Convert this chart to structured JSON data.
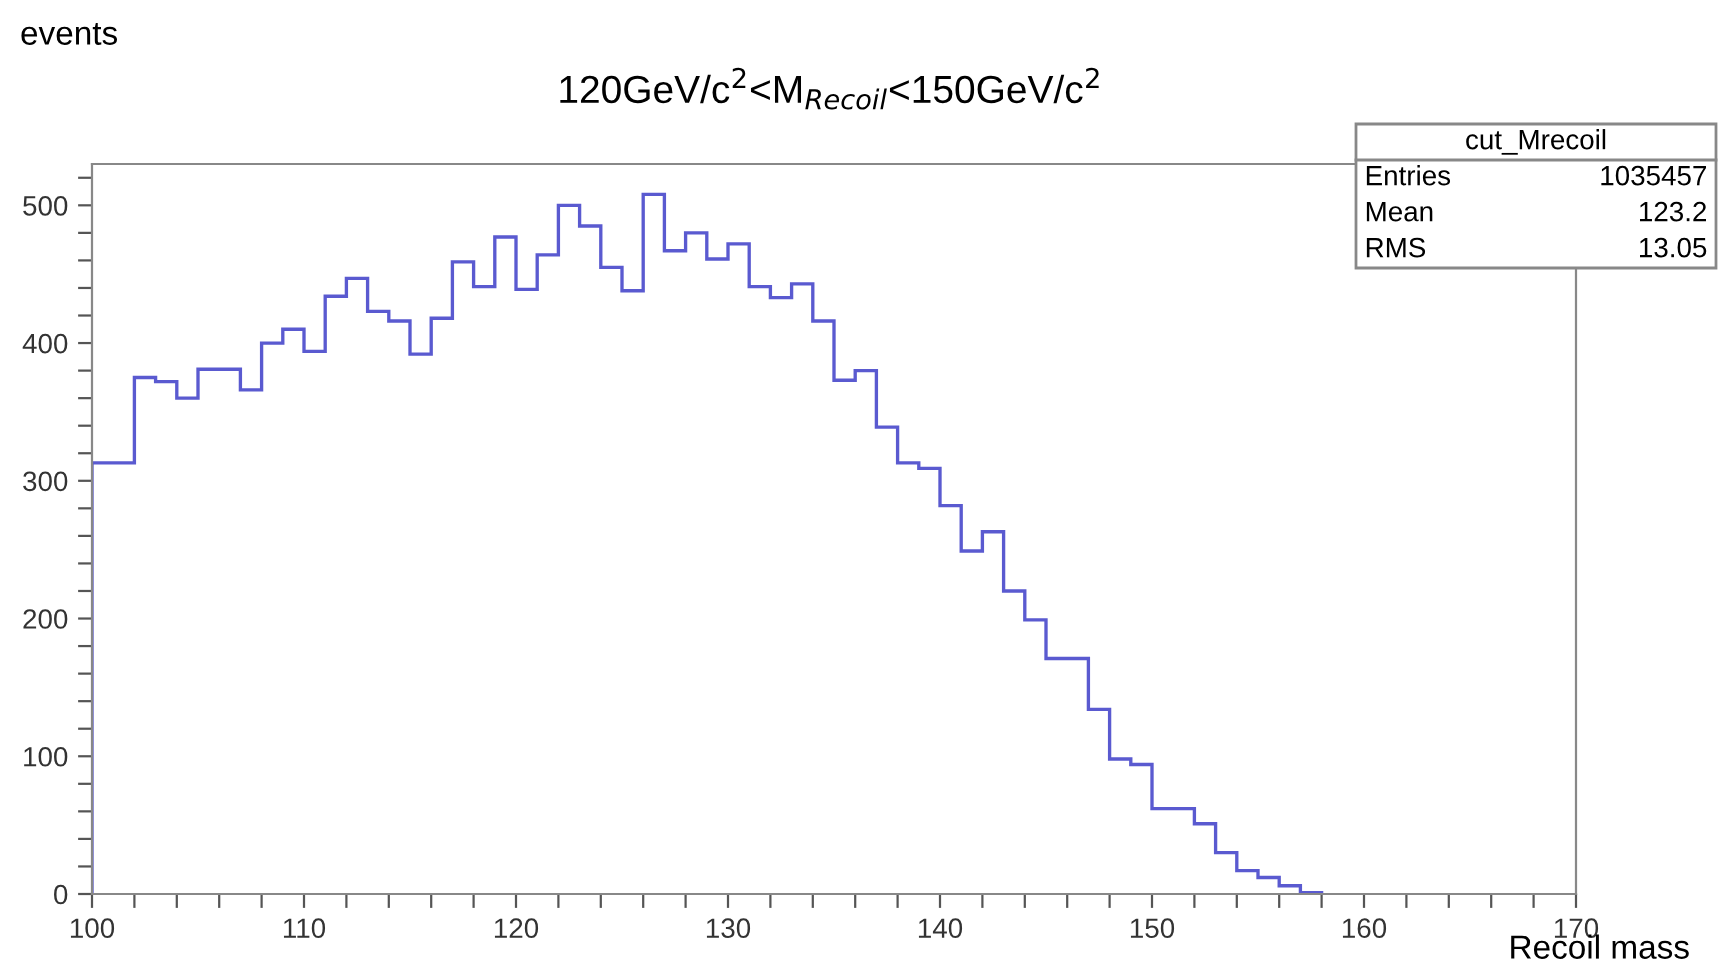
{
  "chart_data": {
    "type": "histogram",
    "title": "120GeV/c$^{2}$<M$_{Recoil}$<150GeV/c$^{2}$",
    "xlabel": "Recoil mass",
    "ylabel": "events",
    "bins": [
      100,
      101,
      102,
      103,
      104,
      105,
      106,
      107,
      108,
      109,
      110,
      111,
      112,
      113,
      114,
      115,
      116,
      117,
      118,
      119,
      120,
      121,
      122,
      123,
      124,
      125,
      126,
      127,
      128,
      129,
      130,
      131,
      132,
      133,
      134,
      135,
      136,
      137,
      138,
      139,
      140,
      141,
      142,
      143,
      144,
      145,
      146,
      147,
      148,
      149,
      150,
      151,
      152,
      153,
      154,
      155,
      156,
      157,
      158
    ],
    "values": [
      313,
      313,
      375,
      372,
      360,
      381,
      381,
      366,
      400,
      410,
      394,
      434,
      447,
      423,
      416,
      392,
      418,
      459,
      441,
      477,
      439,
      464,
      500,
      485,
      455,
      438,
      508,
      467,
      480,
      461,
      472,
      441,
      433,
      443,
      416,
      373,
      380,
      339,
      313,
      309,
      282,
      249,
      263,
      220,
      199,
      171,
      171,
      134,
      98,
      94,
      62,
      62,
      51,
      30,
      17,
      12,
      6,
      1
    ],
    "color": "#5a5ad0",
    "xlim": [
      100,
      170
    ],
    "xticks": [
      100,
      {
        "value": 102,
        "label": null
      },
      {
        "value": 104,
        "label": null
      },
      {
        "value": 106,
        "label": null
      },
      {
        "value": 108,
        "label": null
      },
      110,
      {
        "value": 112,
        "label": null
      },
      {
        "value": 114,
        "label": null
      },
      {
        "value": 116,
        "label": null
      },
      {
        "value": 118,
        "label": null
      },
      120,
      {
        "value": 122,
        "label": null
      },
      {
        "value": 124,
        "label": null
      },
      {
        "value": 126,
        "label": null
      },
      {
        "value": 128,
        "label": null
      },
      130,
      {
        "value": 132,
        "label": null
      },
      {
        "value": 134,
        "label": null
      },
      {
        "value": 136,
        "label": null
      },
      {
        "value": 138,
        "label": null
      },
      140,
      {
        "value": 142,
        "label": null
      },
      {
        "value": 144,
        "label": null
      },
      {
        "value": 146,
        "label": null
      },
      {
        "value": 148,
        "label": null
      },
      150,
      {
        "value": 152,
        "label": null
      },
      {
        "value": 154,
        "label": null
      },
      {
        "value": 156,
        "label": null
      },
      {
        "value": 158,
        "label": null
      },
      160,
      {
        "value": 162,
        "label": null
      },
      {
        "value": 164,
        "label": null
      },
      {
        "value": 166,
        "label": null
      },
      {
        "value": 168,
        "label": null
      },
      170
    ],
    "ylim": [
      0,
      530
    ],
    "yticks": [
      0,
      {
        "value": 20,
        "label": null
      },
      {
        "value": 40,
        "label": null
      },
      {
        "value": 60,
        "label": null
      },
      {
        "value": 80,
        "label": null
      },
      100,
      {
        "value": 120,
        "label": null
      },
      {
        "value": 140,
        "label": null
      },
      {
        "value": 160,
        "label": null
      },
      {
        "value": 180,
        "label": null
      },
      200,
      {
        "value": 220,
        "label": null
      },
      {
        "value": 240,
        "label": null
      },
      {
        "value": 260,
        "label": null
      },
      {
        "value": 280,
        "label": null
      },
      300,
      {
        "value": 320,
        "label": null
      },
      {
        "value": 340,
        "label": null
      },
      {
        "value": 360,
        "label": null
      },
      {
        "value": 380,
        "label": null
      },
      400,
      {
        "value": 420,
        "label": null
      },
      {
        "value": 440,
        "label": null
      },
      {
        "value": 460,
        "label": null
      },
      {
        "value": 480,
        "label": null
      },
      500,
      {
        "value": 520,
        "label": null
      }
    ],
    "grid": false,
    "annotations": [
      "cut_Mrecoil",
      "Entries 1035457",
      "Mean 123.2",
      "RMS 13.05"
    ]
  }
}
